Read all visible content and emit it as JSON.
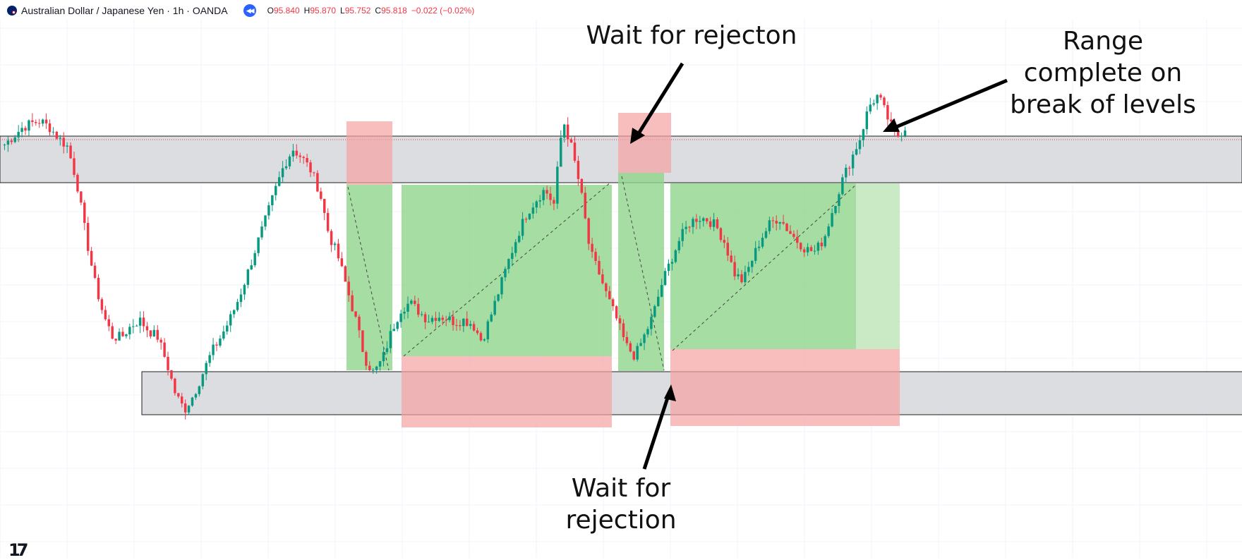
{
  "header": {
    "symbol_title": "Australian Dollar / Japanese Yen · 1h · OANDA",
    "open_label": "O",
    "open_value": "95.840",
    "high_label": "H",
    "high_value": "95.870",
    "low_label": "L",
    "low_value": "95.752",
    "close_label": "C",
    "close_value": "95.818",
    "change_value": "−0.022 (−0.02%)",
    "flag_icon": "australia-flag-icon",
    "replay_icon": "replay-icon"
  },
  "annotations": {
    "top_label": "Wait for rejecton",
    "bottom_label_line1": "Wait for",
    "bottom_label_line2": "rejection",
    "right_label_line1": "Range",
    "right_label_line2": "complete on",
    "right_label_line3": "break of levels"
  },
  "watermark": {
    "logo_text": "17"
  },
  "colors": {
    "up": "#089981",
    "down": "#f23645",
    "zone_fill": "#dcdde0",
    "profit_fill": "#8fd48b",
    "stop_fill": "#f5a3a3",
    "accent": "#2962ff"
  },
  "chart_data": {
    "type": "candlestick",
    "title": "Australian Dollar / Japanese Yen · 1h · OANDA",
    "close_path": [
      95.52,
      95.56,
      95.6,
      95.62,
      95.63,
      95.6,
      95.55,
      95.51,
      95.35,
      95.1,
      94.88,
      94.72,
      94.62,
      94.62,
      94.67,
      94.7,
      94.65,
      94.62,
      94.5,
      94.35,
      94.28,
      94.35,
      94.45,
      94.55,
      94.62,
      94.7,
      94.8,
      94.92,
      95.05,
      95.17,
      95.3,
      95.42,
      95.5,
      95.46,
      95.4,
      95.3,
      95.1,
      95.0,
      94.85,
      94.7,
      94.52,
      94.45,
      94.52,
      94.65,
      94.75,
      94.78,
      94.74,
      94.7,
      94.72,
      94.71,
      94.69,
      94.7,
      94.68,
      94.6,
      94.72,
      94.85,
      94.98,
      95.1,
      95.2,
      95.26,
      95.31,
      95.24,
      95.64,
      95.5,
      95.3,
      95.02,
      94.92,
      94.8,
      94.7,
      94.58,
      94.53,
      94.62,
      94.72,
      94.87,
      94.98,
      95.08,
      95.15,
      95.18,
      95.17,
      95.14,
      95.06,
      94.92,
      94.88,
      94.98,
      95.08,
      95.15,
      95.18,
      95.12,
      95.07,
      95.03,
      95.02,
      95.08,
      95.22,
      95.35,
      95.45,
      95.55,
      95.7,
      95.75,
      95.65,
      95.55,
      95.6
    ],
    "levels": {
      "resistance_zone": [
        95.52,
        95.63
      ],
      "support_zone": [
        94.33,
        94.43
      ]
    },
    "trades": [
      {
        "side": "short",
        "entry": 95.52,
        "stop": 95.67,
        "target": 94.45
      },
      {
        "side": "short",
        "entry": 95.52,
        "stop": 95.67,
        "target": 94.45
      },
      {
        "side": "long",
        "entry": 94.48,
        "stop": 94.3,
        "target": 95.52
      },
      {
        "side": "long",
        "entry": 94.47,
        "stop": 94.3,
        "target": 95.52
      }
    ]
  }
}
